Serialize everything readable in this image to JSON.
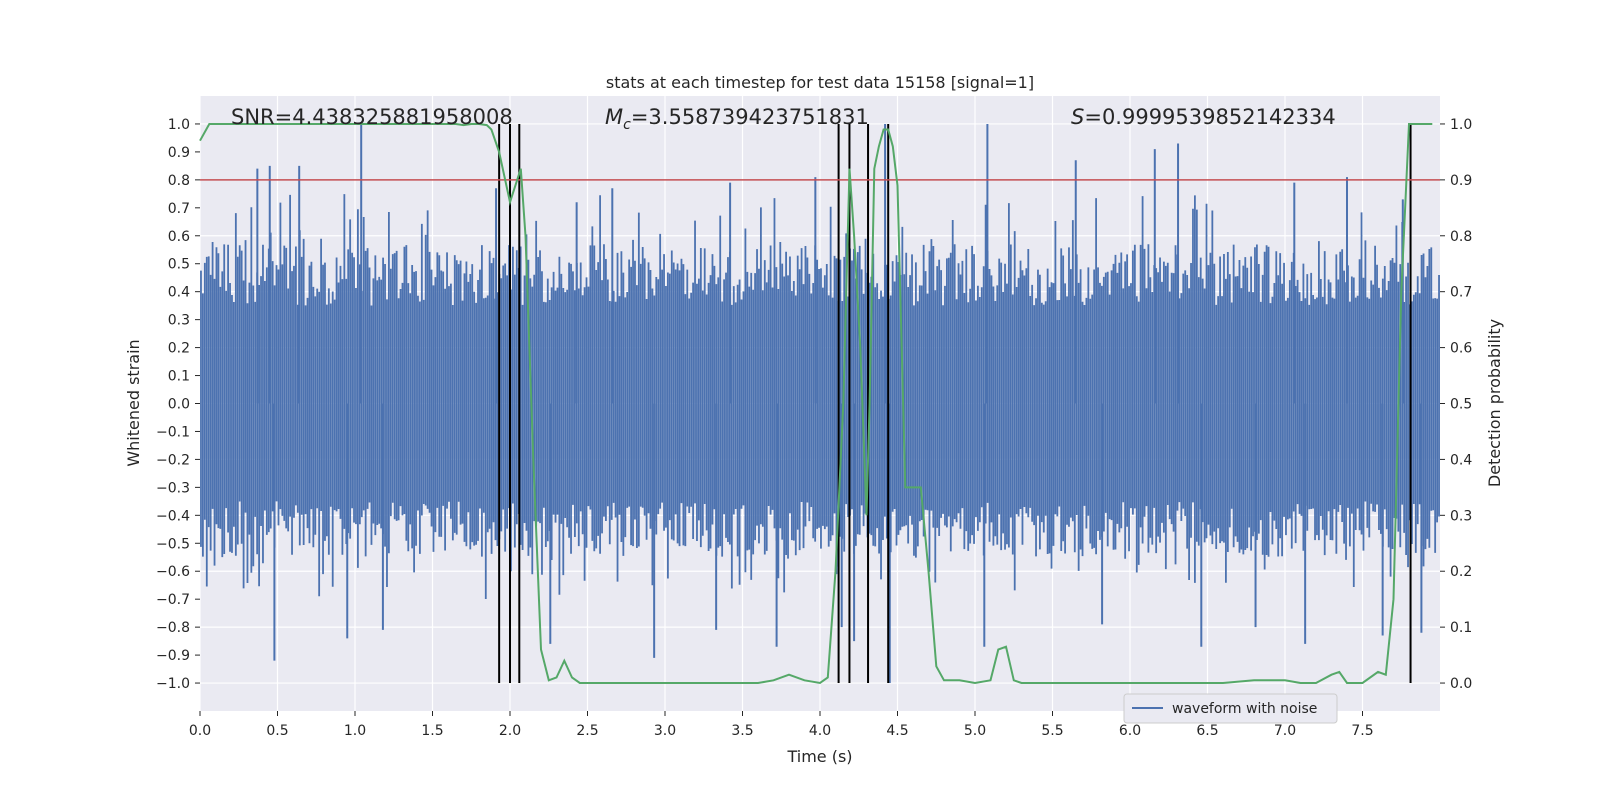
{
  "chart_data": {
    "type": "line",
    "title": "stats at each timestep for test data 15158 [signal=1]",
    "xlabel": "Time (s)",
    "ylabel": "Whitened strain",
    "y2label": "Detection probability",
    "xlim": [
      0.0,
      8.0
    ],
    "ylim": [
      -1.1,
      1.1
    ],
    "y2lim": [
      -0.05,
      1.05
    ],
    "grid": true,
    "xticks": [
      0.0,
      0.5,
      1.0,
      1.5,
      2.0,
      2.5,
      3.0,
      3.5,
      4.0,
      4.5,
      5.0,
      5.5,
      6.0,
      6.5,
      7.0,
      7.5
    ],
    "yticks": [
      1.0,
      0.9,
      0.8,
      0.7,
      0.6,
      0.5,
      0.4,
      0.3,
      0.2,
      0.1,
      0.0,
      -0.1,
      -0.2,
      -0.3,
      -0.4,
      -0.5,
      -0.6,
      -0.7,
      -0.8,
      -0.9,
      -1.0
    ],
    "y2ticks": [
      1.0,
      0.9,
      0.8,
      0.7,
      0.6,
      0.5,
      0.4,
      0.3,
      0.2,
      0.1,
      0.0
    ],
    "annotations": {
      "snr": "SNR=4.438325881958008",
      "mc_symbol": "M",
      "mc_sub": "c",
      "mc_value": "=3.558739423751831",
      "s_symbol": "S",
      "s_value": "=0.9999539852142334"
    },
    "threshold": {
      "axis": "secondary",
      "value": 0.9,
      "color": "#c44e52"
    },
    "vlines_x": [
      1.93,
      2.0,
      2.06,
      4.12,
      4.19,
      4.31,
      4.44,
      7.81
    ],
    "waveform": {
      "name": "waveform with noise",
      "color": "#4c72b0",
      "n_bars": 640,
      "typical_range": [
        -0.4,
        0.4
      ],
      "peaks_x": [
        0.37,
        0.45,
        0.64,
        1.04,
        1.91,
        2.43,
        2.66,
        3.42,
        3.97,
        4.42,
        5.08,
        5.65,
        6.16,
        6.31,
        7.06,
        7.4,
        7.76
      ],
      "peaks_y": [
        0.84,
        0.85,
        0.85,
        1.0,
        0.77,
        0.72,
        0.77,
        0.79,
        0.81,
        1.0,
        1.0,
        0.87,
        0.91,
        0.93,
        0.79,
        0.81,
        0.73
      ],
      "troughs_x": [
        0.48,
        0.95,
        1.18,
        2.0,
        2.26,
        2.93,
        3.33,
        3.72,
        4.14,
        4.22,
        4.45,
        5.06,
        5.82,
        6.46,
        6.81,
        7.13,
        7.63,
        7.88
      ],
      "troughs_y": [
        -0.92,
        -0.84,
        -0.81,
        -0.71,
        -0.86,
        -0.91,
        -0.81,
        -0.87,
        -0.8,
        -0.85,
        -1.0,
        -0.87,
        -0.79,
        -0.87,
        -0.8,
        -0.86,
        -0.83,
        -0.82
      ]
    },
    "probability": {
      "color": "#55a868",
      "x": [
        0.0,
        0.06,
        0.12,
        0.3,
        0.6,
        0.9,
        1.2,
        1.5,
        1.65,
        1.7,
        1.75,
        1.8,
        1.85,
        1.88,
        1.93,
        2.0,
        2.07,
        2.1,
        2.15,
        2.2,
        2.25,
        2.3,
        2.35,
        2.4,
        2.45,
        2.5,
        2.7,
        3.0,
        3.2,
        3.5,
        3.6,
        3.7,
        3.8,
        3.9,
        4.0,
        4.05,
        4.1,
        4.15,
        4.19,
        4.22,
        4.26,
        4.3,
        4.32,
        4.35,
        4.38,
        4.41,
        4.44,
        4.47,
        4.5,
        4.55,
        4.6,
        4.65,
        4.7,
        4.75,
        4.8,
        4.9,
        5.0,
        5.1,
        5.15,
        5.2,
        5.25,
        5.3,
        5.4,
        5.5,
        5.7,
        6.0,
        6.3,
        6.6,
        6.8,
        6.9,
        7.0,
        7.1,
        7.2,
        7.3,
        7.35,
        7.4,
        7.45,
        7.5,
        7.6,
        7.65,
        7.7,
        7.75,
        7.8,
        7.85,
        7.9,
        7.95
      ],
      "y": [
        0.97,
        1.0,
        1.0,
        1.0,
        1.0,
        1.0,
        1.0,
        1.0,
        1.0,
        0.998,
        1.0,
        1.0,
        0.998,
        0.99,
        0.95,
        0.86,
        0.92,
        0.8,
        0.4,
        0.06,
        0.005,
        0.01,
        0.04,
        0.01,
        0.0,
        0.0,
        0.0,
        0.0,
        0.0,
        0.0,
        0.0,
        0.005,
        0.015,
        0.005,
        0.0,
        0.01,
        0.2,
        0.5,
        0.92,
        0.8,
        0.6,
        0.3,
        0.5,
        0.92,
        0.96,
        0.99,
        0.99,
        0.96,
        0.89,
        0.35,
        0.35,
        0.35,
        0.2,
        0.03,
        0.005,
        0.005,
        0.0,
        0.005,
        0.06,
        0.065,
        0.005,
        0.0,
        0.0,
        0.0,
        0.0,
        0.0,
        0.0,
        0.0,
        0.005,
        0.005,
        0.005,
        0.0,
        0.0,
        0.015,
        0.02,
        0.0,
        0.0,
        0.0,
        0.02,
        0.015,
        0.15,
        0.7,
        1.0,
        1.0,
        1.0,
        1.0
      ]
    }
  }
}
